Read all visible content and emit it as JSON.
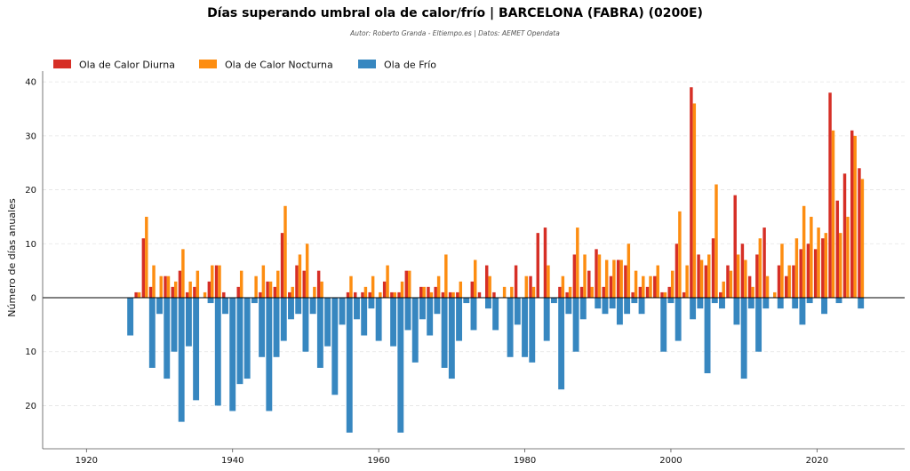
{
  "chart_data": {
    "type": "bar",
    "title": "Días superando umbral ola de calor/frío | BARCELONA (FABRA) (0200E)",
    "subtitle": "Autor: Roberto Granda - Eltiempo.es | Datos: AEMET Opendata",
    "ylabel": "Número de días anuales",
    "xlabel": "",
    "xlim": [
      1914,
      2032
    ],
    "ylim": [
      -28,
      42
    ],
    "x_ticks": [
      1920,
      1940,
      1960,
      1980,
      2000,
      2020
    ],
    "y_ticks": [
      -20,
      -10,
      0,
      10,
      20,
      30,
      40
    ],
    "y_tick_labels": [
      "20",
      "10",
      "0",
      "10",
      "20",
      "30",
      "40"
    ],
    "grid": true,
    "legend_position": "top-left",
    "x": [
      1926,
      1927,
      1928,
      1929,
      1930,
      1931,
      1932,
      1933,
      1934,
      1935,
      1936,
      1937,
      1938,
      1939,
      1940,
      1941,
      1942,
      1943,
      1944,
      1945,
      1946,
      1947,
      1948,
      1949,
      1950,
      1951,
      1952,
      1953,
      1954,
      1955,
      1956,
      1957,
      1958,
      1959,
      1960,
      1961,
      1962,
      1963,
      1964,
      1965,
      1966,
      1967,
      1968,
      1969,
      1970,
      1971,
      1972,
      1973,
      1974,
      1975,
      1976,
      1977,
      1978,
      1979,
      1980,
      1981,
      1982,
      1983,
      1984,
      1985,
      1986,
      1987,
      1988,
      1989,
      1990,
      1991,
      1992,
      1993,
      1994,
      1995,
      1996,
      1997,
      1998,
      1999,
      2000,
      2001,
      2002,
      2003,
      2004,
      2005,
      2006,
      2007,
      2008,
      2009,
      2010,
      2011,
      2012,
      2013,
      2014,
      2015,
      2016,
      2017,
      2018,
      2019,
      2020,
      2021,
      2022,
      2023,
      2024,
      2025,
      2026
    ],
    "series": [
      {
        "name": "Ola de Calor Diurna",
        "color": "#d62f26",
        "values": [
          0,
          1,
          11,
          2,
          0,
          4,
          2,
          5,
          1,
          2,
          0,
          3,
          6,
          1,
          0,
          2,
          0,
          0,
          1,
          3,
          2,
          12,
          1,
          6,
          5,
          0,
          5,
          0,
          0,
          0,
          1,
          1,
          1,
          1,
          0,
          3,
          1,
          1,
          5,
          0,
          2,
          2,
          2,
          1,
          1,
          1,
          0,
          3,
          1,
          6,
          1,
          0,
          0,
          6,
          0,
          4,
          12,
          13,
          0,
          2,
          1,
          8,
          2,
          5,
          9,
          2,
          4,
          7,
          6,
          1,
          2,
          2,
          4,
          1,
          2,
          10,
          1,
          39,
          8,
          6,
          11,
          1,
          6,
          19,
          10,
          4,
          8,
          13,
          0,
          6,
          4,
          6,
          9,
          10,
          9,
          11,
          38,
          18,
          23,
          31,
          24
        ]
      },
      {
        "name": "Ola de Calor Nocturna",
        "color": "#fd8d11",
        "values": [
          0,
          1,
          15,
          6,
          4,
          4,
          3,
          9,
          3,
          5,
          1,
          6,
          6,
          0,
          0,
          5,
          0,
          4,
          6,
          3,
          5,
          17,
          2,
          8,
          10,
          2,
          3,
          0,
          0,
          0,
          4,
          0,
          2,
          4,
          1,
          6,
          1,
          3,
          5,
          0,
          2,
          1,
          4,
          8,
          1,
          3,
          0,
          7,
          0,
          4,
          0,
          2,
          2,
          0,
          4,
          2,
          0,
          6,
          0,
          4,
          2,
          13,
          8,
          2,
          8,
          7,
          7,
          7,
          10,
          5,
          4,
          4,
          6,
          1,
          5,
          16,
          6,
          36,
          7,
          8,
          21,
          3,
          5,
          8,
          7,
          2,
          11,
          4,
          1,
          10,
          6,
          11,
          17,
          15,
          13,
          12,
          31,
          12,
          15,
          30,
          22
        ]
      },
      {
        "name": "Ola de Frío",
        "color": "#3787c0",
        "values": [
          -7,
          0,
          0,
          -13,
          -3,
          -15,
          -10,
          -23,
          -9,
          -19,
          0,
          -1,
          -20,
          -3,
          -21,
          -16,
          -15,
          -1,
          -11,
          -21,
          -11,
          -8,
          -4,
          -3,
          -10,
          -3,
          -13,
          -9,
          -18,
          -5,
          -25,
          -4,
          -7,
          -2,
          -8,
          0,
          -9,
          -25,
          -6,
          -12,
          -4,
          -7,
          -3,
          -13,
          -15,
          -8,
          -1,
          -6,
          0,
          -2,
          -6,
          0,
          -11,
          -5,
          -11,
          -12,
          0,
          -8,
          -1,
          -17,
          -3,
          -10,
          -4,
          0,
          -2,
          -3,
          -2,
          -5,
          -3,
          -1,
          -3,
          0,
          0,
          -10,
          -1,
          -8,
          0,
          -4,
          -2,
          -14,
          -1,
          -2,
          0,
          -5,
          -15,
          -2,
          -10,
          -2,
          0,
          -2,
          0,
          -2,
          -5,
          -1,
          0,
          -3,
          0,
          -1,
          0,
          0,
          -2
        ]
      }
    ]
  }
}
